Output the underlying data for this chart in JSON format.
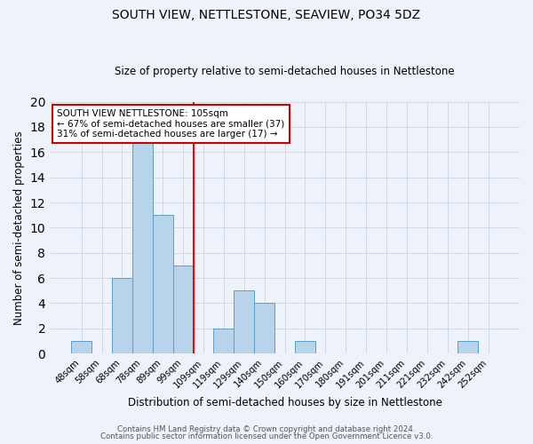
{
  "title": "SOUTH VIEW, NETTLESTONE, SEAVIEW, PO34 5DZ",
  "subtitle": "Size of property relative to semi-detached houses in Nettlestone",
  "xlabel": "Distribution of semi-detached houses by size in Nettlestone",
  "ylabel": "Number of semi-detached properties",
  "footnote1": "Contains HM Land Registry data © Crown copyright and database right 2024.",
  "footnote2": "Contains public sector information licensed under the Open Government Licence v3.0.",
  "bar_labels": [
    "48sqm",
    "58sqm",
    "68sqm",
    "78sqm",
    "89sqm",
    "99sqm",
    "109sqm",
    "119sqm",
    "129sqm",
    "140sqm",
    "150sqm",
    "160sqm",
    "170sqm",
    "180sqm",
    "191sqm",
    "201sqm",
    "211sqm",
    "221sqm",
    "232sqm",
    "242sqm",
    "252sqm"
  ],
  "bar_values": [
    1,
    0,
    6,
    17,
    11,
    7,
    0,
    2,
    5,
    4,
    0,
    1,
    0,
    0,
    0,
    0,
    0,
    0,
    0,
    1,
    0
  ],
  "bar_color": "#b8d4ea",
  "bar_edge_color": "#5a9ec8",
  "grid_color": "#d0d8e8",
  "bg_color": "#eef2fa",
  "red_line_index": 6,
  "annotation_text": "SOUTH VIEW NETTLESTONE: 105sqm\n← 67% of semi-detached houses are smaller (37)\n31% of semi-detached houses are larger (17) →",
  "annotation_box_color": "#ffffff",
  "annotation_box_edge": "#cc0000",
  "ylim": [
    0,
    20
  ],
  "yticks": [
    0,
    2,
    4,
    6,
    8,
    10,
    12,
    14,
    16,
    18,
    20
  ]
}
